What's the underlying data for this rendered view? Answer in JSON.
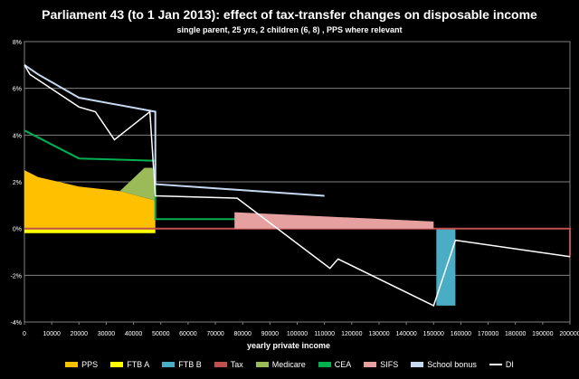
{
  "chart_data": {
    "type": "area",
    "title": "Parliament 43 (to 1 Jan 2013): effect of tax-transfer changes on disposable income",
    "subtitle": "single parent, 25 yrs, 2 children (6, 8) , PPS where relevant",
    "xlabel": "yearly private income",
    "ylabel": "",
    "xlim": [
      0,
      200000
    ],
    "ylim": [
      -4,
      8
    ],
    "x_ticks": [
      "0",
      "10000",
      "20000",
      "30000",
      "40000",
      "50000",
      "60000",
      "70000",
      "80000",
      "90000",
      "100000",
      "110000",
      "120000",
      "130000",
      "140000",
      "150000",
      "160000",
      "170000",
      "180000",
      "190000",
      "200000"
    ],
    "y_ticks": [
      "-4%",
      "-2%",
      "0%",
      "2%",
      "4%",
      "6%",
      "8%"
    ],
    "grid": true,
    "legend_position": "bottom",
    "series": [
      {
        "name": "PPS",
        "color": "#ffc000",
        "points": [
          [
            0,
            0
          ],
          [
            0,
            2.5
          ],
          [
            5000,
            2.2
          ],
          [
            20000,
            1.8
          ],
          [
            35000,
            1.6
          ],
          [
            48000,
            1.2
          ],
          [
            48000,
            0
          ]
        ]
      },
      {
        "name": "FTB A",
        "color": "#ffff00",
        "points": [
          [
            0,
            -0.2
          ],
          [
            48000,
            -0.2
          ],
          [
            48000,
            0
          ],
          [
            0,
            0
          ]
        ]
      },
      {
        "name": "FTB B",
        "color": "#4bacc6",
        "points": [
          [
            151000,
            0
          ],
          [
            151000,
            -3.3
          ],
          [
            158000,
            -3.3
          ],
          [
            158000,
            0
          ]
        ]
      },
      {
        "name": "Tax",
        "color": "#c0504d",
        "points": [
          [
            0,
            0
          ],
          [
            200000,
            0
          ],
          [
            200000,
            -1.2
          ]
        ]
      },
      {
        "name": "Medicare",
        "color": "#9bbb59",
        "points": [
          [
            35000,
            1.6
          ],
          [
            44000,
            2.6
          ],
          [
            47000,
            2.6
          ],
          [
            48000,
            1.2
          ]
        ]
      },
      {
        "name": "CEA",
        "color": "#00b050",
        "points": [
          [
            0,
            4.2
          ],
          [
            20000,
            3.0
          ],
          [
            48000,
            2.9
          ],
          [
            48000,
            0.4
          ],
          [
            78000,
            0.4
          ]
        ]
      },
      {
        "name": "SIFS",
        "color": "#e6a0a0",
        "points": [
          [
            77000,
            0
          ],
          [
            77000,
            0.7
          ],
          [
            150000,
            0.3
          ],
          [
            150000,
            0
          ]
        ]
      },
      {
        "name": "School bonus",
        "color": "#c6d9f1",
        "points": [
          [
            0,
            7.0
          ],
          [
            5000,
            6.6
          ],
          [
            20000,
            5.6
          ],
          [
            48000,
            5.0
          ],
          [
            48000,
            1.9
          ],
          [
            110000,
            1.4
          ]
        ]
      },
      {
        "name": "DI",
        "color": "#ffffff",
        "points": [
          [
            0,
            7.0
          ],
          [
            2000,
            6.6
          ],
          [
            20000,
            5.2
          ],
          [
            26000,
            5.0
          ],
          [
            33000,
            3.8
          ],
          [
            46000,
            5.0
          ],
          [
            48000,
            1.4
          ],
          [
            78000,
            1.3
          ],
          [
            112000,
            -1.7
          ],
          [
            115000,
            -1.3
          ],
          [
            150000,
            -3.3
          ],
          [
            158000,
            -0.5
          ],
          [
            200000,
            -1.2
          ]
        ]
      }
    ]
  }
}
